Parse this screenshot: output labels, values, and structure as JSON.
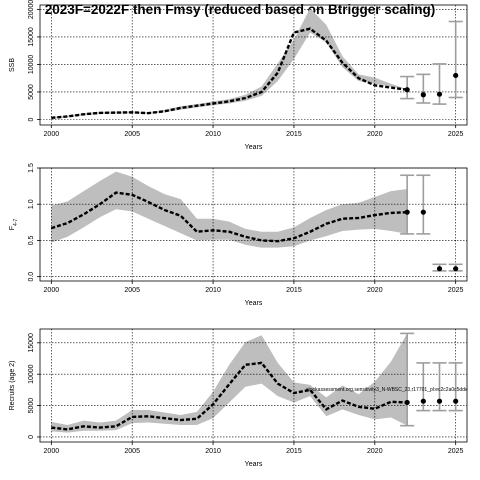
{
  "title": "2023F=2022F then Fmsy (reduced based on Btrigger scaling)",
  "panels": [
    {
      "chart_data": {
        "type": "line",
        "ylabel": "SSB",
        "xlabel": "Years",
        "xlim": [
          1999.3,
          2025.7
        ],
        "ylim": [
          -1000,
          20800
        ],
        "x_ticks": [
          2000,
          2005,
          2010,
          2015,
          2020,
          2025
        ],
        "x_tick_labels": [
          "2000",
          "2005",
          "2010",
          "2015",
          "2020",
          "2025"
        ],
        "y_ticks": [
          0,
          5000,
          10000,
          15000,
          20000
        ],
        "y_tick_labels": [
          "0",
          "5000",
          "10000",
          "15000",
          "20000"
        ],
        "grid": true,
        "x": [
          2000,
          2001,
          2002,
          2003,
          2004,
          2005,
          2006,
          2007,
          2008,
          2009,
          2010,
          2011,
          2012,
          2013,
          2014,
          2015,
          2016,
          2017,
          2018,
          2019,
          2020,
          2021,
          2022
        ],
        "series": [
          {
            "values": [
              150,
              400,
              750,
              1000,
              1050,
              1100,
              1000,
              1300,
              1800,
              2200,
              2600,
              2900,
              3400,
              4300,
              7000,
              11000,
              15800,
              14000,
              9500,
              7000,
              6500,
              6000,
              5400
            ]
          },
          {
            "values": [
              300,
              550,
              950,
              1200,
              1250,
              1300,
              1150,
              1500,
              2100,
              2500,
              2900,
              3300,
              3900,
              5000,
              8500,
              15800,
              16500,
              14300,
              10300,
              7500,
              6200,
              5800,
              5400
            ]
          },
          {
            "values": [
              450,
              700,
              1150,
              1400,
              1450,
              1500,
              1300,
              1750,
              2400,
              2800,
              3300,
              3700,
              4500,
              6000,
              10200,
              14500,
              20200,
              17200,
              11500,
              8200,
              7600,
              6500,
              5500
            ]
          }
        ],
        "forecast": [
          {
            "x": 2022,
            "low": 3800,
            "mid": 5400,
            "high": 7800
          },
          {
            "x": 2023,
            "low": 3000,
            "mid": 4500,
            "high": 8200
          },
          {
            "x": 2024,
            "low": 2800,
            "mid": 4600,
            "high": 10100
          },
          {
            "x": 2025,
            "low": 4000,
            "mid": 8000,
            "high": 17800
          }
        ]
      }
    },
    {
      "chart_data": {
        "type": "line",
        "ylabel": "F",
        "ylabel_sub": "4-7",
        "xlabel": "Years",
        "xlim": [
          1999.3,
          2025.7
        ],
        "ylim": [
          -0.06,
          1.5
        ],
        "x_ticks": [
          2000,
          2005,
          2010,
          2015,
          2020,
          2025
        ],
        "x_tick_labels": [
          "2000",
          "2005",
          "2010",
          "2015",
          "2020",
          "2025"
        ],
        "y_ticks": [
          0.0,
          0.5,
          1.0,
          1.5
        ],
        "y_tick_labels": [
          "0.0",
          "0.5",
          "1.0",
          "1.5"
        ],
        "grid": true,
        "x": [
          2000,
          2001,
          2002,
          2003,
          2004,
          2005,
          2006,
          2007,
          2008,
          2009,
          2010,
          2011,
          2012,
          2013,
          2014,
          2015,
          2016,
          2017,
          2018,
          2019,
          2020,
          2021,
          2022
        ],
        "series": [
          {
            "values": [
              0.47,
              0.55,
              0.68,
              0.82,
              0.93,
              0.9,
              0.8,
              0.7,
              0.6,
              0.5,
              0.51,
              0.51,
              0.44,
              0.4,
              0.4,
              0.42,
              0.5,
              0.56,
              0.63,
              0.65,
              0.66,
              0.63,
              0.59
            ]
          },
          {
            "values": [
              0.67,
              0.74,
              0.86,
              1.0,
              1.16,
              1.13,
              1.03,
              0.92,
              0.84,
              0.62,
              0.64,
              0.62,
              0.55,
              0.5,
              0.49,
              0.53,
              0.62,
              0.73,
              0.8,
              0.81,
              0.85,
              0.88,
              0.89
            ]
          },
          {
            "values": [
              0.98,
              1.04,
              1.18,
              1.32,
              1.45,
              1.38,
              1.25,
              1.14,
              1.07,
              0.8,
              0.8,
              0.76,
              0.66,
              0.62,
              0.62,
              0.68,
              0.81,
              0.92,
              1.0,
              1.02,
              1.1,
              1.18,
              1.21
            ]
          }
        ],
        "forecast": [
          {
            "x": 2022,
            "low": 0.59,
            "mid": 0.89,
            "high": 1.4
          },
          {
            "x": 2023,
            "low": 0.59,
            "mid": 0.89,
            "high": 1.4
          },
          {
            "x": 2024,
            "low": 0.08,
            "mid": 0.11,
            "high": 0.17
          },
          {
            "x": 2025,
            "low": 0.08,
            "mid": 0.11,
            "high": 0.17
          }
        ]
      }
    },
    {
      "chart_data": {
        "type": "line",
        "ylabel": "Recruits (age 2)",
        "xlabel": "Years",
        "xlim": [
          1999.3,
          2025.7
        ],
        "ylim": [
          -800,
          17200
        ],
        "x_ticks": [
          2000,
          2005,
          2010,
          2015,
          2020,
          2025
        ],
        "x_tick_labels": [
          "2000",
          "2005",
          "2010",
          "2015",
          "2020",
          "2025"
        ],
        "y_ticks": [
          0,
          5000,
          10000,
          15000
        ],
        "y_tick_labels": [
          "0",
          "5000",
          "10000",
          "15000"
        ],
        "grid": true,
        "x": [
          2000,
          2001,
          2002,
          2003,
          2004,
          2005,
          2006,
          2007,
          2008,
          2009,
          2010,
          2011,
          2012,
          2013,
          2014,
          2015,
          2016,
          2017,
          2018,
          2019,
          2020,
          2021,
          2022
        ],
        "series": [
          {
            "values": [
              900,
              700,
              1000,
              1000,
              1100,
              2200,
              2300,
              2100,
              1900,
              1900,
              3000,
              5500,
              8000,
              8500,
              6500,
              5500,
              6500,
              3300,
              4400,
              3500,
              2800,
              3100,
              1800
            ]
          },
          {
            "values": [
              1500,
              1200,
              1700,
              1500,
              1700,
              3200,
              3300,
              3000,
              2700,
              2900,
              5200,
              8400,
              11500,
              11800,
              8500,
              7000,
              7500,
              4400,
              5800,
              4800,
              4500,
              5600,
              5500
            ]
          },
          {
            "values": [
              2400,
              1900,
              2600,
              2300,
              2600,
              4300,
              4300,
              3900,
              3500,
              4000,
              7200,
              11500,
              15100,
              16200,
              11800,
              8700,
              8300,
              6300,
              8200,
              6800,
              8800,
              12000,
              16500
            ]
          }
        ],
        "forecast": [
          {
            "x": 2022,
            "low": 1800,
            "mid": 5500,
            "high": 16500
          },
          {
            "x": 2023,
            "low": 4200,
            "mid": 5700,
            "high": 11800
          },
          {
            "x": 2024,
            "low": 4200,
            "mid": 5700,
            "high": 11800
          },
          {
            "x": 2025,
            "low": 4200,
            "mid": 5700,
            "high": 11800
          }
        ]
      },
      "annotation": "stockassessment.org,sensitivity3_N-WBSC_23,r17701_pl:ec2c2a0c5dde"
    }
  ],
  "colors": {
    "band": "#bebebe",
    "line": "#000000",
    "errorbar": "#9e9e9e",
    "grid": "#000000"
  }
}
